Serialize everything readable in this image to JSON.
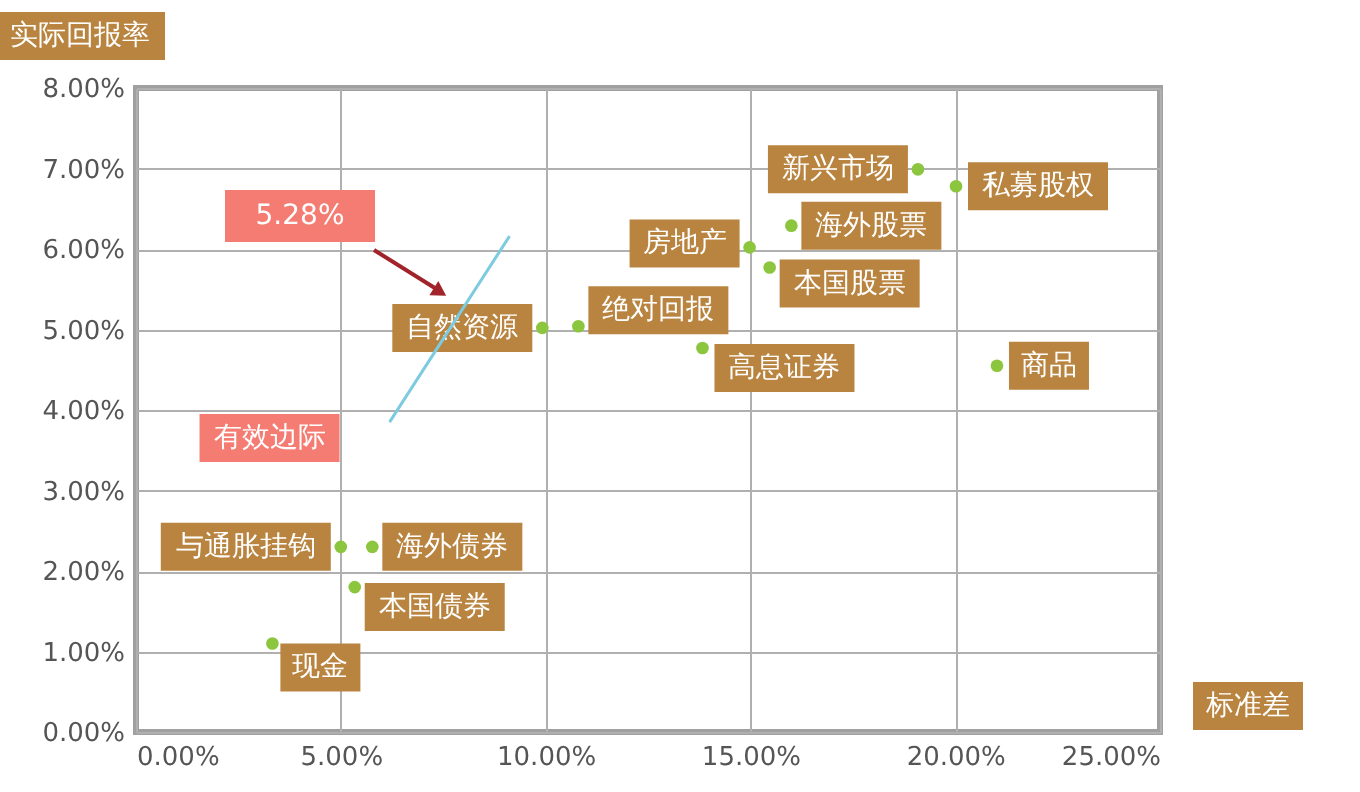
{
  "chart_data": {
    "type": "scatter",
    "xlabel": "标准差",
    "ylabel": "实际回报率",
    "series": [
      {
        "name": "现金",
        "color": "#8cc63f",
        "x": [
          3.33
        ],
        "values": [
          1.1
        ]
      },
      {
        "name": "与通胀挂钩",
        "color": "#8cc63f",
        "x": [
          5.0
        ],
        "values": [
          2.3
        ]
      },
      {
        "name": "海外债券",
        "color": "#8cc63f",
        "x": [
          5.77
        ],
        "values": [
          2.3
        ]
      },
      {
        "name": "本国债券",
        "color": "#8cc63f",
        "x": [
          5.34
        ],
        "values": [
          1.8
        ]
      },
      {
        "name": "自然资源",
        "color": "#8cc63f",
        "x": [
          9.92
        ],
        "values": [
          5.02
        ]
      },
      {
        "name": "绝对回报",
        "color": "#8cc63f",
        "x": [
          10.8
        ],
        "values": [
          5.04
        ]
      },
      {
        "name": "高息证券",
        "color": "#8cc63f",
        "x": [
          13.83
        ],
        "values": [
          4.77
        ]
      },
      {
        "name": "房地产",
        "color": "#8cc63f",
        "x": [
          14.98
        ],
        "values": [
          6.02
        ]
      },
      {
        "name": "海外股票",
        "color": "#8cc63f",
        "x": [
          16.0
        ],
        "values": [
          6.29
        ]
      },
      {
        "name": "本国股票",
        "color": "#8cc63f",
        "x": [
          15.47
        ],
        "values": [
          5.77
        ]
      },
      {
        "name": "新兴市场",
        "color": "#8cc63f",
        "x": [
          19.09
        ],
        "values": [
          6.99
        ]
      },
      {
        "name": "私募股权",
        "color": "#8cc63f",
        "x": [
          20.02
        ],
        "values": [
          6.78
        ]
      },
      {
        "name": "商品",
        "color": "#8cc63f",
        "x": [
          21.02
        ],
        "values": [
          4.55
        ]
      },
      {
        "name": "有效边际",
        "type": "line",
        "color": "#7ccbe0",
        "x": [
          6.19,
          9.12
        ],
        "values": [
          3.85,
          6.16
        ]
      }
    ],
    "annotations": [
      "5.28%"
    ],
    "xlim": [
      0,
      25
    ],
    "xticks": [
      {
        "value": 0,
        "label": "0.00%"
      },
      {
        "value": 5,
        "label": "5.00%"
      },
      {
        "value": 10,
        "label": "10.00%"
      },
      {
        "value": 15,
        "label": "15.00%"
      },
      {
        "value": 20,
        "label": "20.00%"
      },
      {
        "value": 25,
        "label": "25.00%"
      }
    ],
    "ylim": [
      0,
      8
    ],
    "yticks": [
      {
        "value": 0,
        "label": "0.00%"
      },
      {
        "value": 1,
        "label": "1.00%"
      },
      {
        "value": 2,
        "label": "2.00%"
      },
      {
        "value": 3,
        "label": "3.00%"
      },
      {
        "value": 4,
        "label": "4.00%"
      },
      {
        "value": 5,
        "label": "5.00%"
      },
      {
        "value": 6,
        "label": "6.00%"
      },
      {
        "value": 7,
        "label": "7.00%"
      },
      {
        "value": 8,
        "label": "8.00%"
      }
    ],
    "grid": true
  }
}
